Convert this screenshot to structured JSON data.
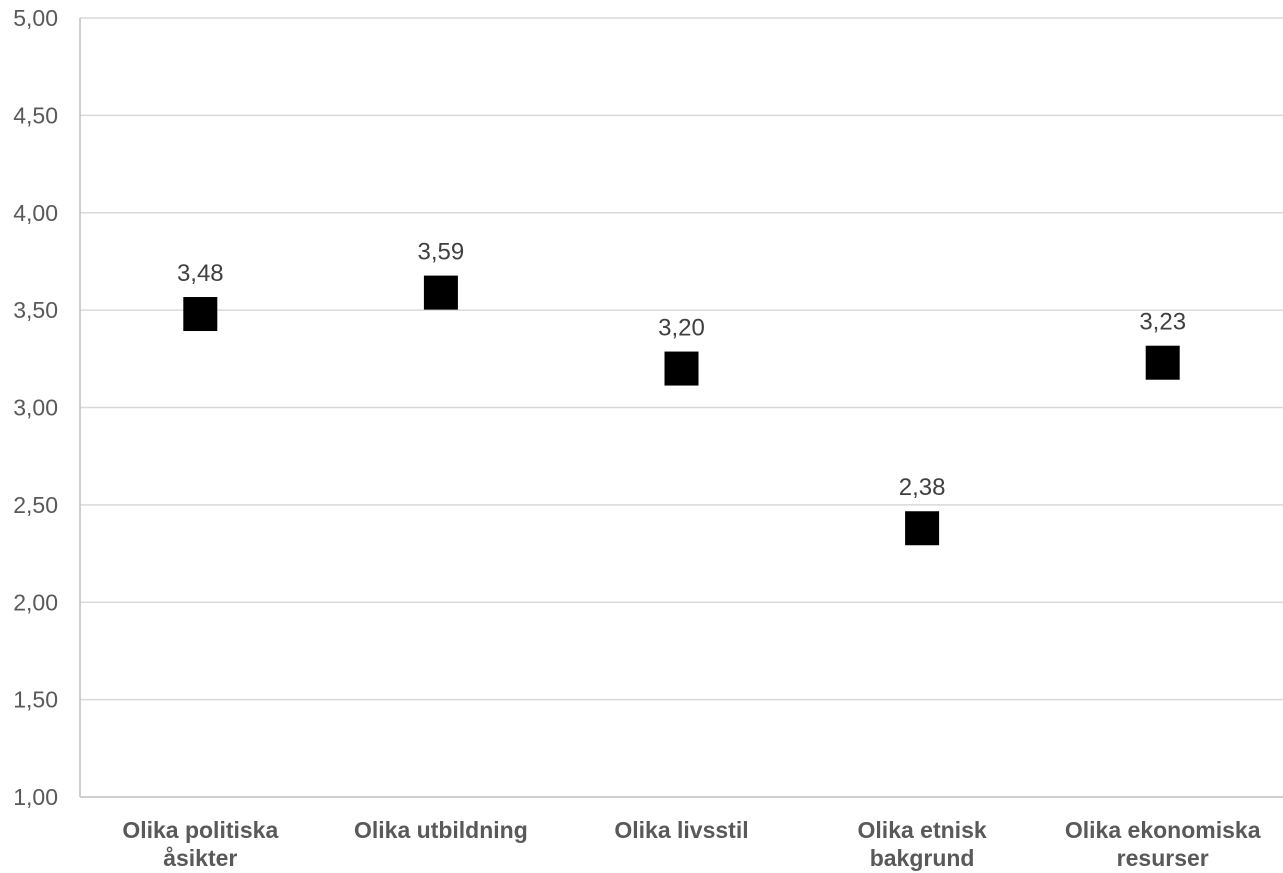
{
  "chart_data": {
    "type": "scatter",
    "categories": [
      [
        "Olika politiska",
        "åsikter"
      ],
      [
        "Olika utbildning"
      ],
      [
        "Olika livsstil"
      ],
      [
        "Olika etnisk",
        "bakgrund"
      ],
      [
        "Olika ekonomiska",
        "resurser"
      ]
    ],
    "values": [
      3.48,
      3.59,
      3.2,
      2.38,
      3.23
    ],
    "data_labels": [
      "3,48",
      "3,59",
      "3,20",
      "2,38",
      "3,23"
    ],
    "ylim": [
      1.0,
      5.0
    ],
    "yticks": [
      1.0,
      1.5,
      2.0,
      2.5,
      3.0,
      3.5,
      4.0,
      4.5,
      5.0
    ],
    "ytick_labels": [
      "1,00",
      "1,50",
      "2,00",
      "2,50",
      "3,00",
      "3,50",
      "4,00",
      "4,50",
      "5,00"
    ],
    "marker": "square",
    "marker_color": "#000000",
    "grid": true,
    "gridline_color": "#d9d9d9",
    "axis_color": "#bfbfbf",
    "legend": "none"
  }
}
